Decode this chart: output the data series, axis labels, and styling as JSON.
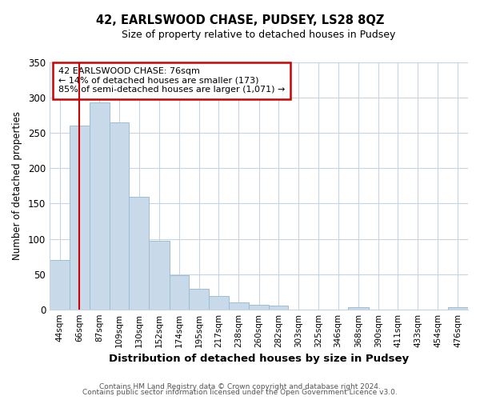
{
  "title": "42, EARLSWOOD CHASE, PUDSEY, LS28 8QZ",
  "subtitle": "Size of property relative to detached houses in Pudsey",
  "xlabel": "Distribution of detached houses by size in Pudsey",
  "ylabel": "Number of detached properties",
  "bar_color": "#c8daea",
  "bar_edge_color": "#9bbdd4",
  "highlight_line_color": "#cc0000",
  "categories": [
    "44sqm",
    "66sqm",
    "87sqm",
    "109sqm",
    "130sqm",
    "152sqm",
    "174sqm",
    "195sqm",
    "217sqm",
    "238sqm",
    "260sqm",
    "282sqm",
    "303sqm",
    "325sqm",
    "346sqm",
    "368sqm",
    "390sqm",
    "411sqm",
    "433sqm",
    "454sqm",
    "476sqm"
  ],
  "bin_edges": [
    44,
    66,
    87,
    109,
    130,
    152,
    174,
    195,
    217,
    238,
    260,
    282,
    303,
    325,
    346,
    368,
    390,
    411,
    433,
    454,
    476
  ],
  "bin_width": [
    22,
    21,
    22,
    21,
    22,
    22,
    21,
    22,
    21,
    22,
    22,
    21,
    22,
    21,
    22,
    22,
    21,
    22,
    21,
    22,
    22
  ],
  "values": [
    70,
    260,
    293,
    265,
    160,
    97,
    48,
    29,
    19,
    10,
    7,
    5,
    0,
    0,
    0,
    3,
    0,
    0,
    0,
    0,
    3
  ],
  "ylim": [
    0,
    350
  ],
  "yticks": [
    0,
    50,
    100,
    150,
    200,
    250,
    300,
    350
  ],
  "annotation_title": "42 EARLSWOOD CHASE: 76sqm",
  "annotation_line1": "← 14% of detached houses are smaller (173)",
  "annotation_line2": "85% of semi-detached houses are larger (1,071) →",
  "footer_line1": "Contains HM Land Registry data © Crown copyright and database right 2024.",
  "footer_line2": "Contains public sector information licensed under the Open Government Licence v3.0.",
  "property_size": 76,
  "xlim_left": 44,
  "xlim_right": 498
}
